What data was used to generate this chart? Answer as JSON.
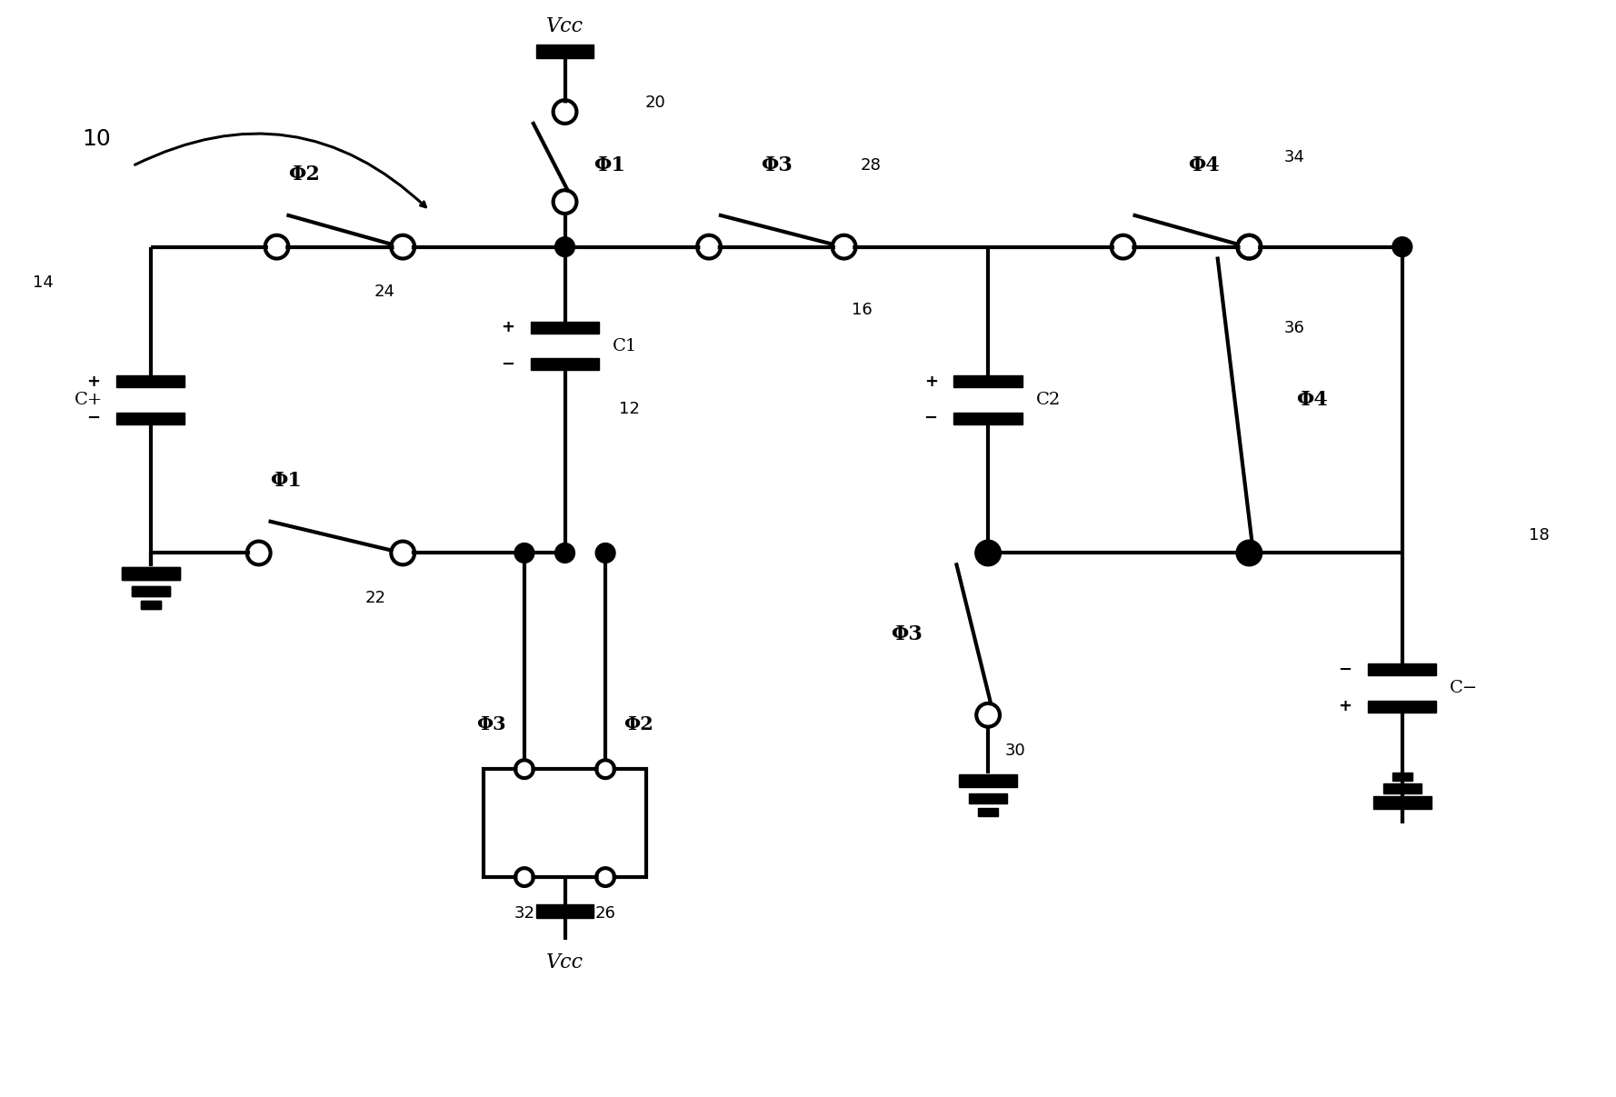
{
  "bg_color": "#ffffff",
  "line_color": "#000000",
  "lw": 3.0,
  "fig_width": 17.78,
  "fig_height": 12.07,
  "xlim": [
    0,
    178
  ],
  "ylim": [
    0,
    121
  ]
}
